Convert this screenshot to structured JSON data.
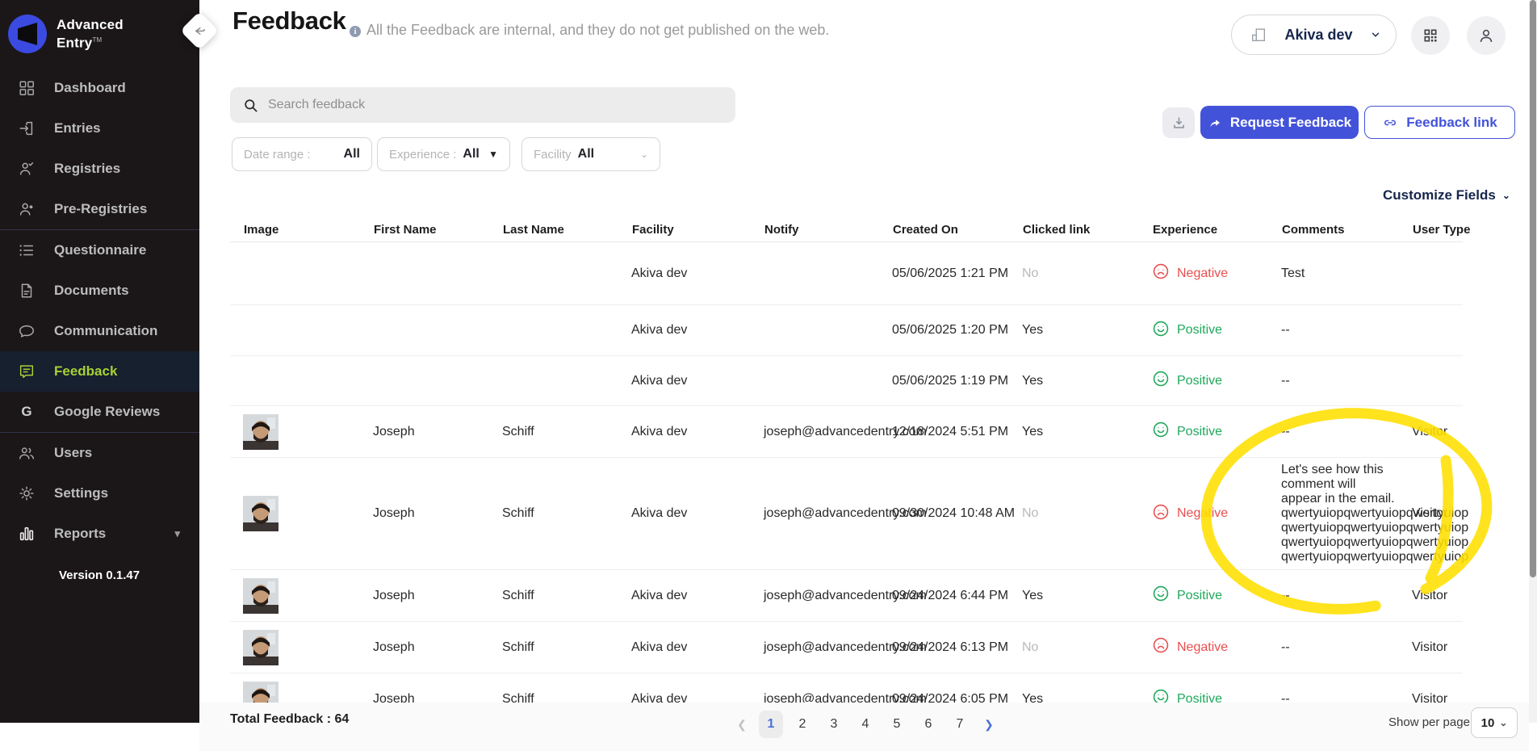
{
  "sidebar": {
    "logo_line1": "Advanced",
    "logo_line2": "Entry",
    "items": [
      {
        "label": "Dashboard",
        "icon": "dashboard-icon",
        "active": false
      },
      {
        "label": "Entries",
        "icon": "entries-icon",
        "active": false
      },
      {
        "label": "Registries",
        "icon": "registries-icon",
        "active": false
      },
      {
        "label": "Pre-Registries",
        "icon": "pre-registries-icon",
        "active": false
      },
      {
        "label": "Questionnaire",
        "icon": "questionnaire-icon",
        "active": false
      },
      {
        "label": "Documents",
        "icon": "documents-icon",
        "active": false
      },
      {
        "label": "Communication",
        "icon": "communication-icon",
        "active": false
      },
      {
        "label": "Feedback",
        "icon": "feedback-icon",
        "active": true
      },
      {
        "label": "Google Reviews",
        "icon": "google-icon",
        "active": false
      },
      {
        "label": "Users",
        "icon": "users-icon",
        "active": false
      },
      {
        "label": "Settings",
        "icon": "settings-icon",
        "active": false
      },
      {
        "label": "Reports",
        "icon": "reports-icon",
        "active": false,
        "has_chevron": true
      }
    ],
    "version": "Version 0.1.47"
  },
  "header": {
    "title": "Feedback",
    "subtitle": "All the Feedback are internal, and they do not get published on the web.",
    "org_selector": "Akiva dev"
  },
  "toolbar": {
    "search_placeholder": "Search feedback",
    "filters": [
      {
        "label": "Date range :",
        "value": "All"
      },
      {
        "label": "Experience :",
        "value": "All"
      },
      {
        "label": "Facility",
        "value": "All"
      }
    ],
    "request_feedback_label": "Request Feedback",
    "feedback_link_label": "Feedback link",
    "customize_fields_label": "Customize Fields"
  },
  "table": {
    "columns": [
      "Image",
      "First Name",
      "Last Name",
      "Facility",
      "Notify",
      "Created On",
      "Clicked link",
      "Experience",
      "Comments",
      "User Type"
    ],
    "rows": [
      {
        "has_image": false,
        "first_name": "",
        "last_name": "",
        "facility": "Akiva dev",
        "notify": "",
        "created_on": "05/06/2025 1:21 PM",
        "clicked_link": "No",
        "experience": "Negative",
        "comments": "Test",
        "user_type": ""
      },
      {
        "has_image": false,
        "first_name": "",
        "last_name": "",
        "facility": "Akiva dev",
        "notify": "",
        "created_on": "05/06/2025 1:20 PM",
        "clicked_link": "Yes",
        "experience": "Positive",
        "comments": "--",
        "user_type": ""
      },
      {
        "has_image": false,
        "first_name": "",
        "last_name": "",
        "facility": "Akiva dev",
        "notify": "",
        "created_on": "05/06/2025 1:19 PM",
        "clicked_link": "Yes",
        "experience": "Positive",
        "comments": "--",
        "user_type": ""
      },
      {
        "has_image": true,
        "first_name": "Joseph",
        "last_name": "Schiff",
        "facility": "Akiva dev",
        "notify": "joseph@advancedentry.com",
        "created_on": "12/18/2024 5:51 PM",
        "clicked_link": "Yes",
        "experience": "Positive",
        "comments": "--",
        "user_type": "Visitor"
      },
      {
        "has_image": true,
        "first_name": "Joseph",
        "last_name": "Schiff",
        "facility": "Akiva dev",
        "notify": "joseph@advancedentry.com",
        "created_on": "09/30/2024 10:48 AM",
        "clicked_link": "No",
        "experience": "Negative",
        "comments": "Let's see how this comment will appear in the email.\nqwertyuiopqwertyuiopqwertyuiop\nqwertyuiopqwertyuiopqwertyuiop\nqwertyuiopqwertyuiopqwertyuiop\nqwertyuiopqwertyuiopqwertyuiop",
        "user_type": "Visitor"
      },
      {
        "has_image": true,
        "first_name": "Joseph",
        "last_name": "Schiff",
        "facility": "Akiva dev",
        "notify": "joseph@advancedentry.com",
        "created_on": "09/24/2024 6:44 PM",
        "clicked_link": "Yes",
        "experience": "Positive",
        "comments": "--",
        "user_type": "Visitor"
      },
      {
        "has_image": true,
        "first_name": "Joseph",
        "last_name": "Schiff",
        "facility": "Akiva dev",
        "notify": "joseph@advancedentry.com",
        "created_on": "09/24/2024 6:13 PM",
        "clicked_link": "No",
        "experience": "Negative",
        "comments": "--",
        "user_type": "Visitor"
      },
      {
        "has_image": true,
        "first_name": "Joseph",
        "last_name": "Schiff",
        "facility": "Akiva dev",
        "notify": "joseph@advancedentry.com",
        "created_on": "09/24/2024 6:05 PM",
        "clicked_link": "Yes",
        "experience": "Positive",
        "comments": "--",
        "user_type": "Visitor"
      }
    ]
  },
  "footer": {
    "total_label": "Total Feedback : 64",
    "pages": [
      "1",
      "2",
      "3",
      "4",
      "5",
      "6",
      "7"
    ],
    "active_page": "1",
    "show_per_page_label": "Show per page",
    "per_page_value": "10"
  },
  "colors": {
    "accent": "#4353d9",
    "positive": "#1fa85c",
    "negative": "#e84f4f",
    "sidebar_active": "#a8d034",
    "annotation_yellow": "#ffe000"
  }
}
